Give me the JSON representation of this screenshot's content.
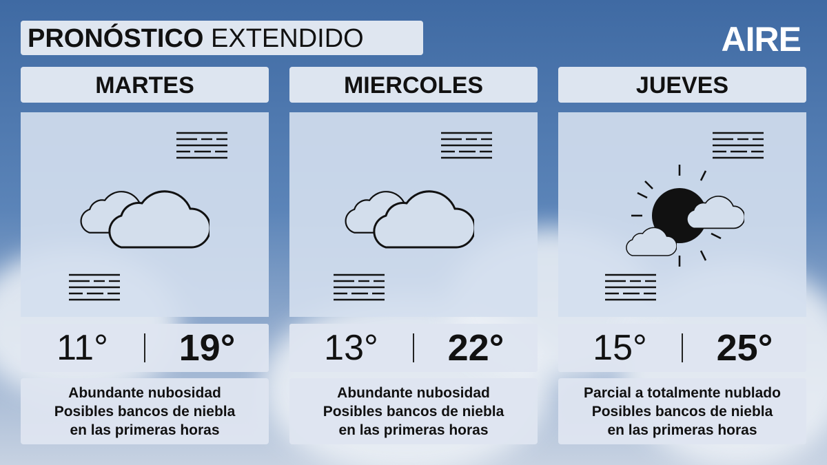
{
  "header": {
    "title_bold": "PRONÓSTICO",
    "title_rest": "EXTENDIDO",
    "logo": "AIRE"
  },
  "days": [
    {
      "name": "MARTES",
      "min": "11°",
      "max": "19°",
      "description": [
        "Abundante nubosidad",
        "Posibles bancos de niebla",
        "en las primeras horas"
      ]
    },
    {
      "name": "MIERCOLES",
      "min": "13°",
      "max": "22°",
      "description": [
        "Abundante nubosidad",
        "Posibles bancos de niebla",
        "en las primeras horas"
      ]
    },
    {
      "name": "JUEVES",
      "min": "15°",
      "max": "25°",
      "description": [
        "Parcial a totalmente nublado",
        "Posibles bancos de niebla",
        "en las primeras horas"
      ]
    }
  ]
}
